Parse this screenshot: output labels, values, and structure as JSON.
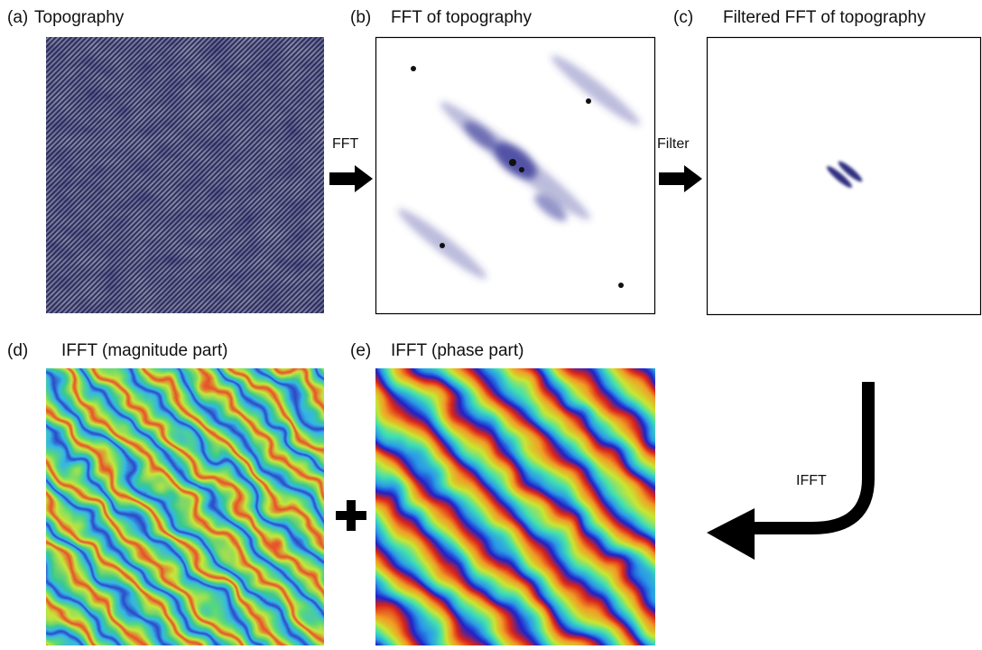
{
  "panels": [
    {
      "tag": "(a)",
      "title": "Topography"
    },
    {
      "tag": "(b)",
      "title": "FFT of topography"
    },
    {
      "tag": "(c)",
      "title": "Filtered FFT of topography"
    },
    {
      "tag": "(d)",
      "title": "IFFT (magnitude part)"
    },
    {
      "tag": "(e)",
      "title": "IFFT (phase part)"
    }
  ],
  "arrows": [
    {
      "label": "FFT"
    },
    {
      "label": "Filter"
    },
    {
      "label": "IFFT"
    }
  ]
}
